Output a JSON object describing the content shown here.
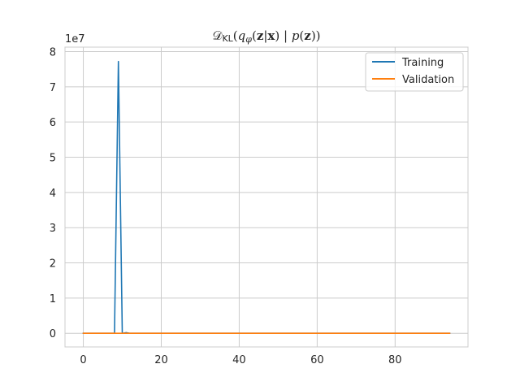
{
  "chart_data": {
    "type": "line",
    "title": "𝒟KL(qφ(z|x) | p(z))",
    "title_parts": {
      "d": "𝒟",
      "kl": "KL",
      "open": "(",
      "q": "q",
      "phi": "φ",
      "zbold": "z",
      "bar": "|",
      "xbold": "x",
      "close1": ") ",
      "pipe": "| ",
      "p": "p",
      "zbold2": "z",
      "close2": "))"
    },
    "xlabel": "",
    "ylabel": "",
    "y_multiplier_label": "1e7",
    "xlim": [
      -4.7,
      98.7
    ],
    "ylim": [
      -3870000,
      81270000
    ],
    "xticks": [
      0,
      20,
      40,
      60,
      80
    ],
    "xtick_labels": [
      "0",
      "20",
      "40",
      "60",
      "80"
    ],
    "yticks": [
      0,
      10000000,
      20000000,
      30000000,
      40000000,
      50000000,
      60000000,
      70000000,
      80000000
    ],
    "ytick_labels": [
      "0",
      "1",
      "2",
      "3",
      "4",
      "5",
      "6",
      "7",
      "8"
    ],
    "grid": true,
    "legend_position": "top-right",
    "series": [
      {
        "name": "Training",
        "color": "#1f77b4",
        "x": [
          0,
          8,
          9,
          10,
          11,
          12,
          94
        ],
        "y": [
          0,
          0,
          77200000,
          0,
          200000,
          0,
          0
        ]
      },
      {
        "name": "Validation",
        "color": "#ff7f0e",
        "x": [
          0,
          94
        ],
        "y": [
          0,
          0
        ]
      }
    ]
  }
}
